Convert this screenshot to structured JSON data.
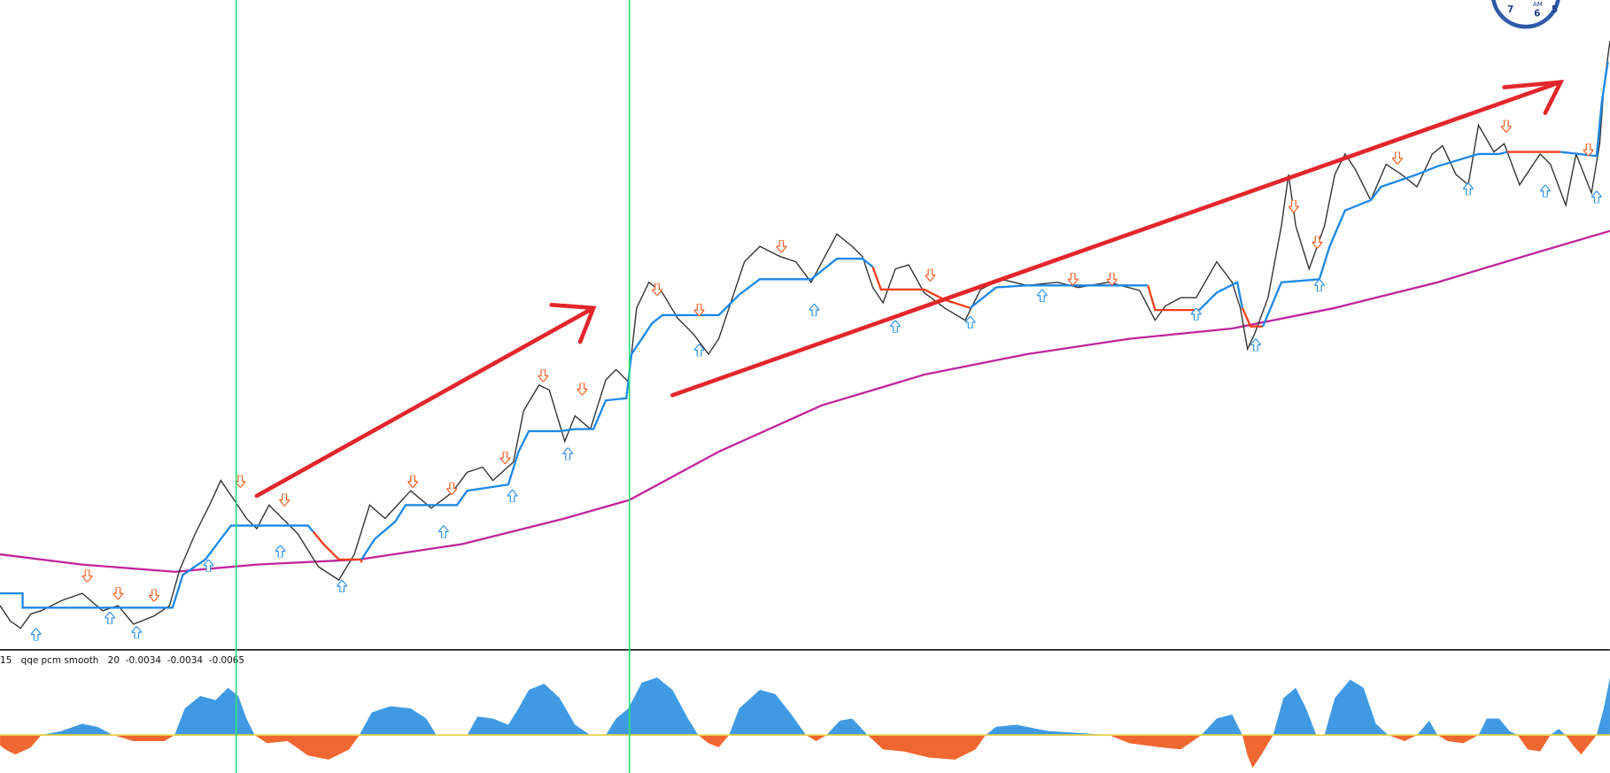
{
  "indicator": {
    "period": "15",
    "name": "qqe pcm smooth",
    "setting": "20",
    "values": [
      "-0.0034",
      "-0.0034",
      "-0.0065"
    ]
  },
  "clock": {
    "left_number": "7",
    "period": "AM",
    "bottom_number": "6",
    "right_number": "5"
  }
}
